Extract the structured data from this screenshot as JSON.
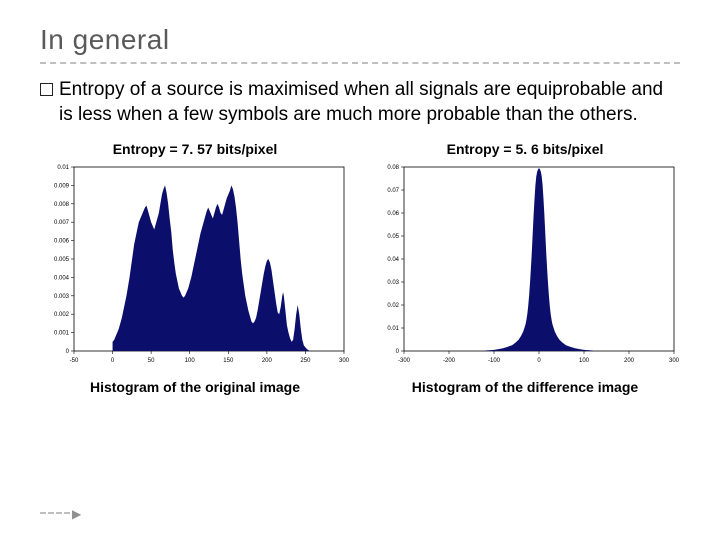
{
  "slide": {
    "title": "In general",
    "bullet_text": "Entropy of a source is maximised when all signals are equiprobable and is less when a few symbols are much more probable than the others."
  },
  "chart_left": {
    "type": "histogram",
    "title": "Entropy = 7. 57 bits/pixel",
    "caption": "Histogram of the original image",
    "xlim": [
      -50,
      300
    ],
    "ylim": [
      0,
      0.01
    ],
    "xticks": [
      -50,
      0,
      50,
      100,
      150,
      200,
      250,
      300
    ],
    "yticks": [
      0,
      0.001,
      0.002,
      0.003,
      0.004,
      0.005,
      0.006,
      0.007,
      0.008,
      0.009,
      0.01
    ],
    "ytick_labels": [
      "0",
      "0.001",
      "0.002",
      "0.003",
      "0.004",
      "0.005",
      "0.006",
      "0.007",
      "0.008",
      "0.009",
      "0.01"
    ],
    "fill_color": "#0b0f6b",
    "tick_fontsize": 6,
    "axis_color": "#000000",
    "background_color": "#ffffff",
    "data": [
      [
        0,
        0.0005
      ],
      [
        2,
        0.0006
      ],
      [
        4,
        0.0008
      ],
      [
        6,
        0.001
      ],
      [
        8,
        0.0012
      ],
      [
        10,
        0.0015
      ],
      [
        12,
        0.0018
      ],
      [
        14,
        0.0022
      ],
      [
        16,
        0.0026
      ],
      [
        18,
        0.003
      ],
      [
        20,
        0.0035
      ],
      [
        22,
        0.004
      ],
      [
        24,
        0.0046
      ],
      [
        26,
        0.0052
      ],
      [
        28,
        0.0058
      ],
      [
        30,
        0.0062
      ],
      [
        32,
        0.0066
      ],
      [
        34,
        0.007
      ],
      [
        36,
        0.0072
      ],
      [
        38,
        0.0074
      ],
      [
        40,
        0.0076
      ],
      [
        42,
        0.0078
      ],
      [
        44,
        0.0079
      ],
      [
        46,
        0.0076
      ],
      [
        48,
        0.0073
      ],
      [
        50,
        0.007
      ],
      [
        52,
        0.0068
      ],
      [
        54,
        0.0066
      ],
      [
        56,
        0.0069
      ],
      [
        58,
        0.0072
      ],
      [
        60,
        0.0075
      ],
      [
        62,
        0.008
      ],
      [
        64,
        0.0085
      ],
      [
        66,
        0.0088
      ],
      [
        68,
        0.009
      ],
      [
        70,
        0.0086
      ],
      [
        72,
        0.008
      ],
      [
        74,
        0.0072
      ],
      [
        76,
        0.0065
      ],
      [
        78,
        0.0055
      ],
      [
        80,
        0.0048
      ],
      [
        82,
        0.0042
      ],
      [
        84,
        0.0038
      ],
      [
        86,
        0.0034
      ],
      [
        88,
        0.0032
      ],
      [
        90,
        0.003
      ],
      [
        92,
        0.0029
      ],
      [
        94,
        0.003
      ],
      [
        96,
        0.0032
      ],
      [
        98,
        0.0034
      ],
      [
        100,
        0.0037
      ],
      [
        102,
        0.004
      ],
      [
        104,
        0.0044
      ],
      [
        106,
        0.0048
      ],
      [
        108,
        0.0052
      ],
      [
        110,
        0.0056
      ],
      [
        112,
        0.006
      ],
      [
        114,
        0.0064
      ],
      [
        116,
        0.0067
      ],
      [
        118,
        0.007
      ],
      [
        120,
        0.0073
      ],
      [
        122,
        0.0076
      ],
      [
        124,
        0.0078
      ],
      [
        126,
        0.0076
      ],
      [
        128,
        0.0074
      ],
      [
        130,
        0.0072
      ],
      [
        132,
        0.0075
      ],
      [
        134,
        0.0078
      ],
      [
        136,
        0.008
      ],
      [
        138,
        0.0078
      ],
      [
        140,
        0.0075
      ],
      [
        142,
        0.0074
      ],
      [
        144,
        0.0077
      ],
      [
        146,
        0.008
      ],
      [
        148,
        0.0083
      ],
      [
        150,
        0.0085
      ],
      [
        152,
        0.0087
      ],
      [
        154,
        0.009
      ],
      [
        156,
        0.0088
      ],
      [
        158,
        0.0084
      ],
      [
        160,
        0.0078
      ],
      [
        162,
        0.007
      ],
      [
        164,
        0.006
      ],
      [
        166,
        0.005
      ],
      [
        168,
        0.0042
      ],
      [
        170,
        0.0036
      ],
      [
        172,
        0.003
      ],
      [
        174,
        0.0026
      ],
      [
        176,
        0.0022
      ],
      [
        178,
        0.0019
      ],
      [
        180,
        0.0016
      ],
      [
        182,
        0.0015
      ],
      [
        184,
        0.0016
      ],
      [
        186,
        0.0018
      ],
      [
        188,
        0.0022
      ],
      [
        190,
        0.0027
      ],
      [
        192,
        0.0032
      ],
      [
        194,
        0.0037
      ],
      [
        196,
        0.0042
      ],
      [
        198,
        0.0046
      ],
      [
        200,
        0.0049
      ],
      [
        202,
        0.005
      ],
      [
        204,
        0.0048
      ],
      [
        206,
        0.0044
      ],
      [
        208,
        0.0038
      ],
      [
        210,
        0.0032
      ],
      [
        212,
        0.0026
      ],
      [
        214,
        0.0021
      ],
      [
        216,
        0.002
      ],
      [
        218,
        0.0024
      ],
      [
        220,
        0.003
      ],
      [
        221,
        0.0032
      ],
      [
        222,
        0.003
      ],
      [
        224,
        0.0022
      ],
      [
        226,
        0.0014
      ],
      [
        228,
        0.001
      ],
      [
        230,
        0.0007
      ],
      [
        232,
        0.0005
      ],
      [
        234,
        0.0006
      ],
      [
        236,
        0.0012
      ],
      [
        238,
        0.002
      ],
      [
        240,
        0.0025
      ],
      [
        242,
        0.002
      ],
      [
        244,
        0.0012
      ],
      [
        246,
        0.0006
      ],
      [
        248,
        0.0003
      ],
      [
        250,
        0.0002
      ],
      [
        252,
        0.0001
      ],
      [
        254,
        5e-05
      ],
      [
        255,
        0
      ]
    ]
  },
  "chart_right": {
    "type": "histogram",
    "title": "Entropy = 5. 6 bits/pixel",
    "caption": "Histogram of the difference image",
    "xlim": [
      -300,
      300
    ],
    "ylim": [
      0,
      0.08
    ],
    "xticks": [
      -300,
      -200,
      -100,
      0,
      100,
      200,
      300
    ],
    "yticks": [
      0,
      0.01,
      0.02,
      0.03,
      0.04,
      0.05,
      0.06,
      0.07,
      0.08
    ],
    "ytick_labels": [
      "0",
      "0.01",
      "0.02",
      "0.03",
      "0.04",
      "0.05",
      "0.06",
      "0.07",
      "0.08"
    ],
    "fill_color": "#0b0f6b",
    "tick_fontsize": 6,
    "axis_color": "#000000",
    "background_color": "#ffffff",
    "data": [
      [
        -120,
        0.0002
      ],
      [
        -100,
        0.0005
      ],
      [
        -90,
        0.0008
      ],
      [
        -80,
        0.0012
      ],
      [
        -70,
        0.0018
      ],
      [
        -60,
        0.0025
      ],
      [
        -55,
        0.0032
      ],
      [
        -50,
        0.004
      ],
      [
        -45,
        0.005
      ],
      [
        -40,
        0.0065
      ],
      [
        -35,
        0.0085
      ],
      [
        -30,
        0.0115
      ],
      [
        -28,
        0.0135
      ],
      [
        -26,
        0.016
      ],
      [
        -24,
        0.0195
      ],
      [
        -22,
        0.024
      ],
      [
        -20,
        0.0295
      ],
      [
        -18,
        0.036
      ],
      [
        -16,
        0.043
      ],
      [
        -14,
        0.051
      ],
      [
        -12,
        0.059
      ],
      [
        -10,
        0.066
      ],
      [
        -8,
        0.072
      ],
      [
        -6,
        0.076
      ],
      [
        -4,
        0.078
      ],
      [
        -2,
        0.079
      ],
      [
        0,
        0.0795
      ],
      [
        2,
        0.079
      ],
      [
        4,
        0.078
      ],
      [
        6,
        0.076
      ],
      [
        8,
        0.072
      ],
      [
        10,
        0.066
      ],
      [
        12,
        0.059
      ],
      [
        14,
        0.051
      ],
      [
        16,
        0.043
      ],
      [
        18,
        0.036
      ],
      [
        20,
        0.0295
      ],
      [
        22,
        0.024
      ],
      [
        24,
        0.0195
      ],
      [
        26,
        0.016
      ],
      [
        28,
        0.0135
      ],
      [
        30,
        0.0115
      ],
      [
        35,
        0.0085
      ],
      [
        40,
        0.0065
      ],
      [
        45,
        0.005
      ],
      [
        50,
        0.004
      ],
      [
        55,
        0.0032
      ],
      [
        60,
        0.0025
      ],
      [
        70,
        0.0018
      ],
      [
        80,
        0.0012
      ],
      [
        90,
        0.0008
      ],
      [
        100,
        0.0005
      ],
      [
        120,
        0.0002
      ]
    ]
  }
}
